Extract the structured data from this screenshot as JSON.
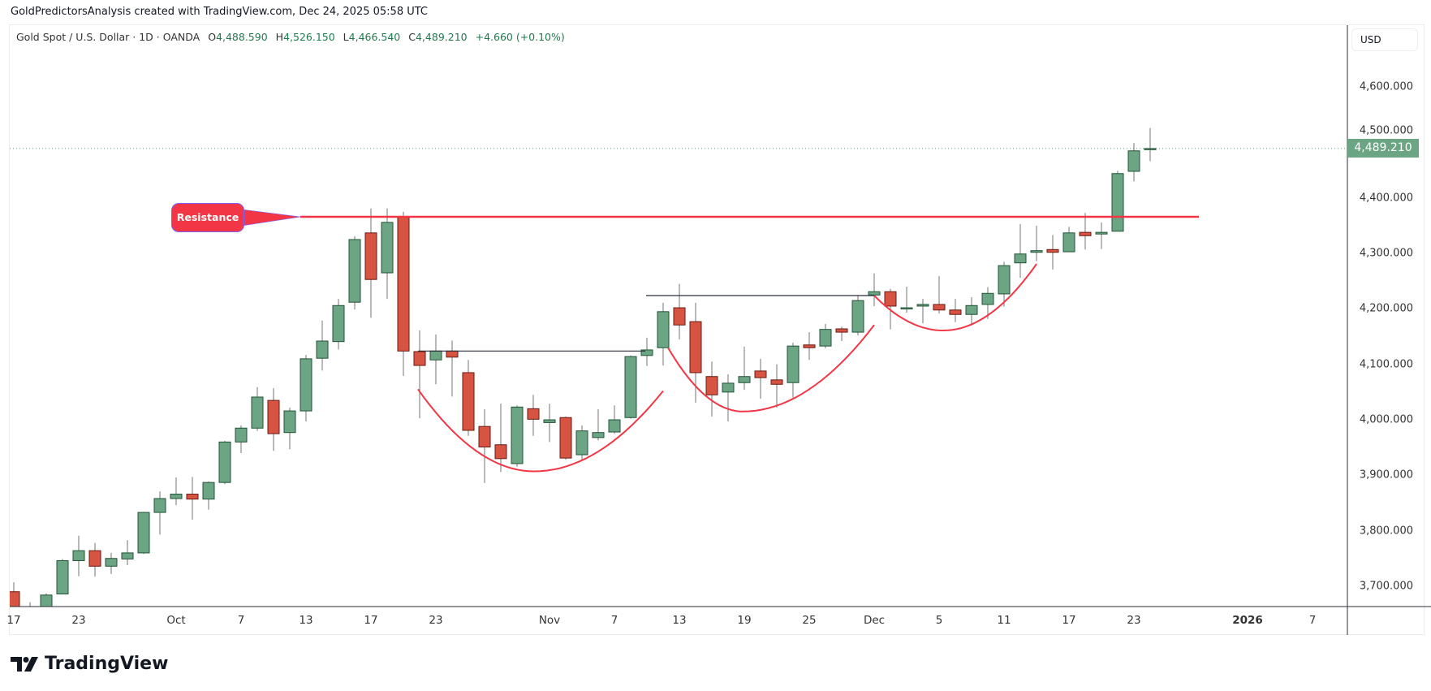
{
  "header": {
    "credit": "GoldPredictorsAnalysis created with TradingView.com, Dec 24, 2025 05:58 UTC"
  },
  "legend": {
    "symbol": "Gold Spot / U.S. Dollar · 1D · OANDA",
    "o_label": "O",
    "o": "4,488.590",
    "h_label": "H",
    "h": "4,526.150",
    "l_label": "L",
    "l": "4,466.540",
    "c_label": "C",
    "c": "4,489.210",
    "change": "+4.660 (+0.10%)"
  },
  "price_axis": {
    "currency": "USD",
    "last_price": "4,489.210"
  },
  "footer": {
    "logo_text": "TradingView"
  },
  "colors": {
    "up": "#6ba583",
    "up_border": "#225437",
    "down": "#d75442",
    "down_border": "#6b1a10",
    "wick": "#737375",
    "resistance": "#f23645",
    "pattern": "#f23645"
  },
  "chart_data": {
    "type": "candlestick",
    "title": "Gold Spot / U.S. Dollar · 1D · OANDA",
    "ylim": [
      3663,
      4650
    ],
    "yticks": [
      {
        "value": 3700,
        "label": "3,700.000"
      },
      {
        "value": 3800,
        "label": "3,800.000"
      },
      {
        "value": 3900,
        "label": "3,900.000"
      },
      {
        "value": 4000,
        "label": "4,000.000"
      },
      {
        "value": 4100,
        "label": "4,100.000"
      },
      {
        "value": 4200,
        "label": "4,200.000"
      },
      {
        "value": 4300,
        "label": "4,300.000"
      },
      {
        "value": 4400,
        "label": "4,400.000"
      },
      {
        "value": 4500,
        "label": "4,500.000"
      },
      {
        "value": 4600,
        "label": "4,600.000"
      }
    ],
    "xticks": [
      {
        "index": 0,
        "label": "17"
      },
      {
        "index": 4,
        "label": "23"
      },
      {
        "index": 10,
        "label": "Oct"
      },
      {
        "index": 14,
        "label": "7"
      },
      {
        "index": 18,
        "label": "13"
      },
      {
        "index": 22,
        "label": "17"
      },
      {
        "index": 26,
        "label": "23"
      },
      {
        "index": 33,
        "label": "Nov"
      },
      {
        "index": 37,
        "label": "7"
      },
      {
        "index": 41,
        "label": "13"
      },
      {
        "index": 45,
        "label": "19"
      },
      {
        "index": 49,
        "label": "25"
      },
      {
        "index": 53,
        "label": "Dec"
      },
      {
        "index": 57,
        "label": "5"
      },
      {
        "index": 61,
        "label": "11"
      },
      {
        "index": 65,
        "label": "17"
      },
      {
        "index": 69,
        "label": "23"
      },
      {
        "index": 76,
        "label": "2026",
        "bold": true
      },
      {
        "index": 80,
        "label": "7"
      }
    ],
    "columns": [
      "date",
      "open",
      "high",
      "low",
      "close"
    ],
    "candles": [
      [
        "2025-09-17",
        3690,
        3707,
        3655,
        3660
      ],
      [
        "2025-09-18",
        3660,
        3671,
        3628,
        3644
      ],
      [
        "2025-09-19",
        3644,
        3687,
        3633,
        3684
      ],
      [
        "2025-09-22",
        3686,
        3749,
        3685,
        3746
      ],
      [
        "2025-09-23",
        3746,
        3791,
        3718,
        3764
      ],
      [
        "2025-09-24",
        3764,
        3778,
        3717,
        3736
      ],
      [
        "2025-09-25",
        3736,
        3760,
        3722,
        3750
      ],
      [
        "2025-09-26",
        3749,
        3783,
        3738,
        3760
      ],
      [
        "2025-09-29",
        3760,
        3834,
        3758,
        3833
      ],
      [
        "2025-09-30",
        3833,
        3871,
        3793,
        3858
      ],
      [
        "2025-10-01",
        3858,
        3896,
        3846,
        3866
      ],
      [
        "2025-10-02",
        3866,
        3897,
        3820,
        3857
      ],
      [
        "2025-10-03",
        3857,
        3889,
        3838,
        3887
      ],
      [
        "2025-10-06",
        3887,
        3962,
        3884,
        3960
      ],
      [
        "2025-10-07",
        3960,
        3990,
        3940,
        3985
      ],
      [
        "2025-10-08",
        3985,
        4059,
        3980,
        4041
      ],
      [
        "2025-10-09",
        4035,
        4057,
        3944,
        3975
      ],
      [
        "2025-10-10",
        3977,
        4022,
        3947,
        4016
      ],
      [
        "2025-10-13",
        4016,
        4117,
        3997,
        4110
      ],
      [
        "2025-10-14",
        4111,
        4179,
        4089,
        4142
      ],
      [
        "2025-10-15",
        4141,
        4218,
        4127,
        4206
      ],
      [
        "2025-10-16",
        4212,
        4331,
        4199,
        4325
      ],
      [
        "2025-10-17",
        4337,
        4381,
        4184,
        4253
      ],
      [
        "2025-10-20",
        4265,
        4381,
        4218,
        4356
      ],
      [
        "2025-10-21",
        4366,
        4375,
        4079,
        4124
      ],
      [
        "2025-10-22",
        4123,
        4161,
        4003,
        4098
      ],
      [
        "2025-10-23",
        4108,
        4154,
        4064,
        4124
      ],
      [
        "2025-10-24",
        4124,
        4143,
        4042,
        4113
      ],
      [
        "2025-10-27",
        4085,
        4108,
        3971,
        3981
      ],
      [
        "2025-10-28",
        3988,
        4019,
        3886,
        3951
      ],
      [
        "2025-10-29",
        3955,
        4029,
        3906,
        3930
      ],
      [
        "2025-10-30",
        3921,
        4026,
        3915,
        4023
      ],
      [
        "2025-10-31",
        4020,
        4045,
        3971,
        4001
      ],
      [
        "2025-11-03",
        3995,
        4029,
        3960,
        4000
      ],
      [
        "2025-11-04",
        4004,
        4006,
        3928,
        3931
      ],
      [
        "2025-11-05",
        3937,
        3990,
        3928,
        3980
      ],
      [
        "2025-11-06",
        3968,
        4019,
        3963,
        3977
      ],
      [
        "2025-11-07",
        3978,
        4026,
        3975,
        4000
      ],
      [
        "2025-11-10",
        4004,
        4116,
        4002,
        4114
      ],
      [
        "2025-11-11",
        4116,
        4148,
        4097,
        4126
      ],
      [
        "2025-11-12",
        4130,
        4211,
        4098,
        4195
      ],
      [
        "2025-11-13",
        4202,
        4245,
        4145,
        4171
      ],
      [
        "2025-11-14",
        4177,
        4211,
        4031,
        4085
      ],
      [
        "2025-11-17",
        4078,
        4105,
        4006,
        4045
      ],
      [
        "2025-11-18",
        4050,
        4082,
        3997,
        4066
      ],
      [
        "2025-11-19",
        4067,
        4132,
        4054,
        4078
      ],
      [
        "2025-11-20",
        4088,
        4110,
        4038,
        4076
      ],
      [
        "2025-11-21",
        4072,
        4100,
        4022,
        4064
      ],
      [
        "2025-11-24",
        4067,
        4139,
        4040,
        4133
      ],
      [
        "2025-11-25",
        4135,
        4158,
        4108,
        4130
      ],
      [
        "2025-11-26",
        4133,
        4173,
        4129,
        4163
      ],
      [
        "2025-11-27",
        4164,
        4168,
        4142,
        4158
      ],
      [
        "2025-11-28",
        4158,
        4225,
        4152,
        4215
      ],
      [
        "2025-12-01",
        4225,
        4264,
        4205,
        4231
      ],
      [
        "2025-12-02",
        4231,
        4236,
        4163,
        4205
      ],
      [
        "2025-12-03",
        4201,
        4240,
        4193,
        4202
      ],
      [
        "2025-12-04",
        4205,
        4218,
        4174,
        4208
      ],
      [
        "2025-12-05",
        4208,
        4259,
        4192,
        4198
      ],
      [
        "2025-12-08",
        4198,
        4218,
        4176,
        4190
      ],
      [
        "2025-12-09",
        4190,
        4221,
        4170,
        4206
      ],
      [
        "2025-12-10",
        4208,
        4239,
        4182,
        4228
      ],
      [
        "2025-12-11",
        4227,
        4285,
        4204,
        4278
      ],
      [
        "2025-12-12",
        4283,
        4353,
        4256,
        4299
      ],
      [
        "2025-12-15",
        4302,
        4350,
        4286,
        4305
      ],
      [
        "2025-12-16",
        4307,
        4333,
        4271,
        4302
      ],
      [
        "2025-12-17",
        4303,
        4348,
        4303,
        4337
      ],
      [
        "2025-12-18",
        4338,
        4373,
        4307,
        4332
      ],
      [
        "2025-12-19",
        4335,
        4356,
        4308,
        4338
      ],
      [
        "2025-12-22",
        4340,
        4449,
        4340,
        4444
      ],
      [
        "2025-12-23",
        4448,
        4499,
        4430,
        4485
      ],
      [
        "2025-12-24",
        4488.59,
        4526.15,
        4466.54,
        4489.21
      ]
    ],
    "last_price": 4489.21,
    "annotations": {
      "resistance": {
        "label": "Resistance",
        "price": 4366,
        "from_index": 17.65,
        "to_index": 73
      },
      "levels": [
        {
          "price": 4124,
          "from_index": 24.9,
          "to_index": 38.9
        },
        {
          "price": 4224,
          "from_index": 38.95,
          "to_index": 53
        }
      ],
      "arcs": [
        {
          "start": [
            24.9,
            4055
          ],
          "bottom": [
            32.05,
            3907
          ],
          "end": [
            40,
            4052
          ]
        },
        {
          "start": [
            40.3,
            4130
          ],
          "bottom": [
            44.9,
            4015
          ],
          "end": [
            53,
            4171
          ]
        },
        {
          "start": [
            53,
            4224
          ],
          "bottom": [
            57.25,
            4161
          ],
          "end": [
            63,
            4281
          ]
        }
      ]
    }
  }
}
